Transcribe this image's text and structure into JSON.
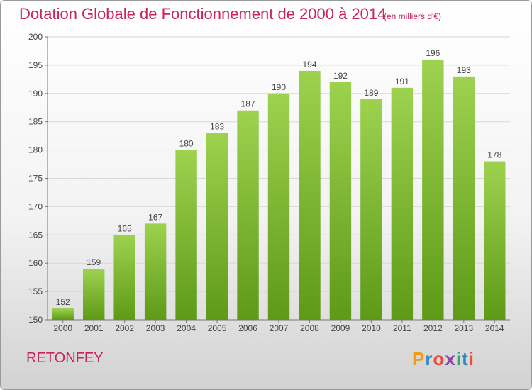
{
  "header": {
    "title": "Dotation Globale de Fonctionnement de 2000 à 2014",
    "subtitle": "(en milliers d'€)"
  },
  "footer": {
    "place": "RETONFEY",
    "brand": "Proxiti",
    "brand_colors": [
      "#f39c12",
      "#2e86c1",
      "#e74c3c",
      "#8e44ad",
      "#27ae60",
      "#2e86c1",
      "#e74c3c"
    ]
  },
  "chart_data": {
    "type": "bar",
    "title": "Dotation Globale de Fonctionnement de 2000 à 2014",
    "subtitle": "(en milliers d'€)",
    "xlabel": "",
    "ylabel": "",
    "categories": [
      "2000",
      "2001",
      "2002",
      "2003",
      "2004",
      "2005",
      "2006",
      "2007",
      "2008",
      "2009",
      "2010",
      "2011",
      "2012",
      "2013",
      "2014"
    ],
    "values": [
      152,
      159,
      165,
      167,
      180,
      183,
      187,
      190,
      194,
      192,
      189,
      191,
      196,
      193,
      178
    ],
    "ylim": [
      150,
      200
    ],
    "yticks": [
      150,
      155,
      160,
      165,
      170,
      175,
      180,
      185,
      190,
      195,
      200
    ],
    "grid": true,
    "colors": {
      "bar_top": "#9dd24f",
      "bar_bottom": "#5e9a17",
      "title": "#c8235a"
    }
  }
}
